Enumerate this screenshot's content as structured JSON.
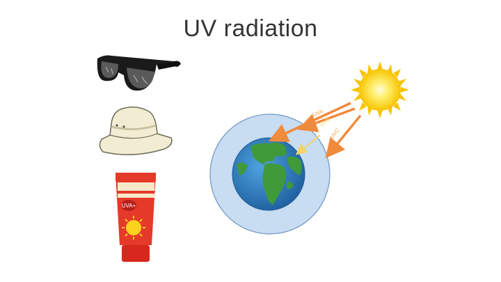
{
  "slide": {
    "title": "UV radiation"
  },
  "items": [
    {
      "icon": "sunglasses-icon"
    },
    {
      "icon": "bucket-hat-icon"
    },
    {
      "icon": "sunscreen-tube-icon",
      "label": "UVA+"
    }
  ],
  "diagram": {
    "sun_icon": "sun-icon",
    "earth_icon": "earth-globe-icon",
    "rays": [
      {
        "label": "UVA",
        "color": "#f4a64a"
      },
      {
        "label": "UVB",
        "color": "#f1c65a"
      },
      {
        "label": "UVC",
        "color": "#f4a64a"
      }
    ],
    "colors": {
      "arrow": "#f08a3c",
      "atmosphere": "#c8dcf2",
      "ocean": "#2a7dc2",
      "land": "#3f9a3a",
      "sun": "#fcd21f"
    }
  }
}
